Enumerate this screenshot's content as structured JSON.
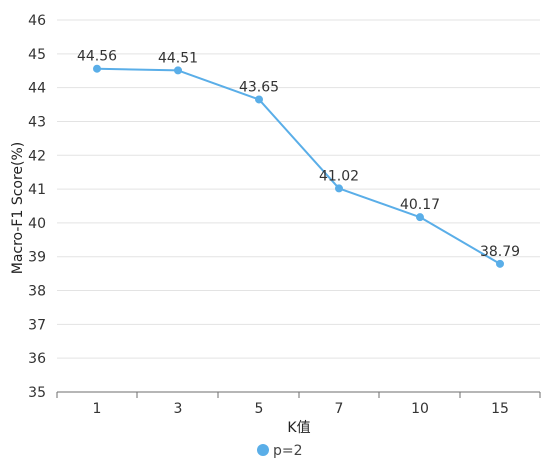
{
  "chart_data": {
    "type": "line",
    "categories": [
      "1",
      "3",
      "5",
      "7",
      "10",
      "15"
    ],
    "series": [
      {
        "name": "p=2",
        "values": [
          44.56,
          44.51,
          43.65,
          41.02,
          40.17,
          38.79
        ],
        "color": "#5aaee8"
      }
    ],
    "data_labels": [
      "44.56",
      "44.51",
      "43.65",
      "41.02",
      "40.17",
      "38.79"
    ],
    "xlabel": "K值",
    "ylabel": "Macro-F1 Score(%)",
    "ylim": [
      35,
      46
    ],
    "yticks": [
      "35",
      "36",
      "37",
      "38",
      "39",
      "40",
      "41",
      "42",
      "43",
      "44",
      "45",
      "46"
    ],
    "grid": true,
    "legend_position": "bottom-center"
  }
}
